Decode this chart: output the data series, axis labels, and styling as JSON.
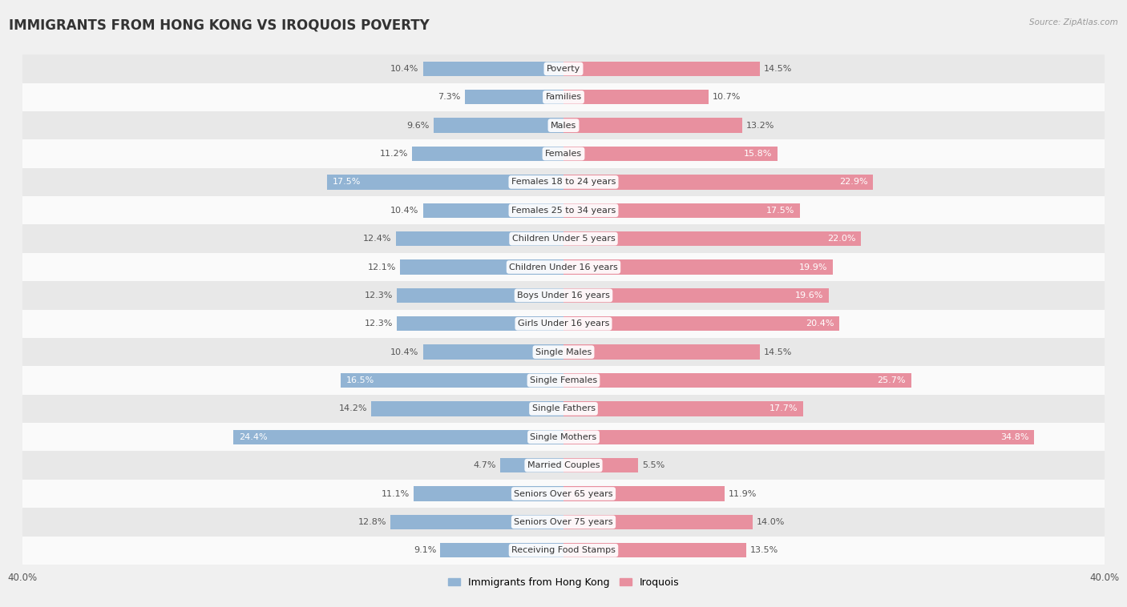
{
  "title": "IMMIGRANTS FROM HONG KONG VS IROQUOIS POVERTY",
  "source": "Source: ZipAtlas.com",
  "categories": [
    "Poverty",
    "Families",
    "Males",
    "Females",
    "Females 18 to 24 years",
    "Females 25 to 34 years",
    "Children Under 5 years",
    "Children Under 16 years",
    "Boys Under 16 years",
    "Girls Under 16 years",
    "Single Males",
    "Single Females",
    "Single Fathers",
    "Single Mothers",
    "Married Couples",
    "Seniors Over 65 years",
    "Seniors Over 75 years",
    "Receiving Food Stamps"
  ],
  "hk_values": [
    10.4,
    7.3,
    9.6,
    11.2,
    17.5,
    10.4,
    12.4,
    12.1,
    12.3,
    12.3,
    10.4,
    16.5,
    14.2,
    24.4,
    4.7,
    11.1,
    12.8,
    9.1
  ],
  "iro_values": [
    14.5,
    10.7,
    13.2,
    15.8,
    22.9,
    17.5,
    22.0,
    19.9,
    19.6,
    20.4,
    14.5,
    25.7,
    17.7,
    34.8,
    5.5,
    11.9,
    14.0,
    13.5
  ],
  "hk_color": "#92b4d4",
  "iro_color": "#e8909f",
  "hk_label": "Immigrants from Hong Kong",
  "iro_label": "Iroquois",
  "bar_height": 0.52,
  "xlim": 40.0,
  "bg_color": "#f0f0f0",
  "row_light_color": "#fafafa",
  "row_dark_color": "#e8e8e8",
  "title_fontsize": 12,
  "label_fontsize": 8,
  "tick_fontsize": 8.5,
  "cat_fontsize": 8
}
